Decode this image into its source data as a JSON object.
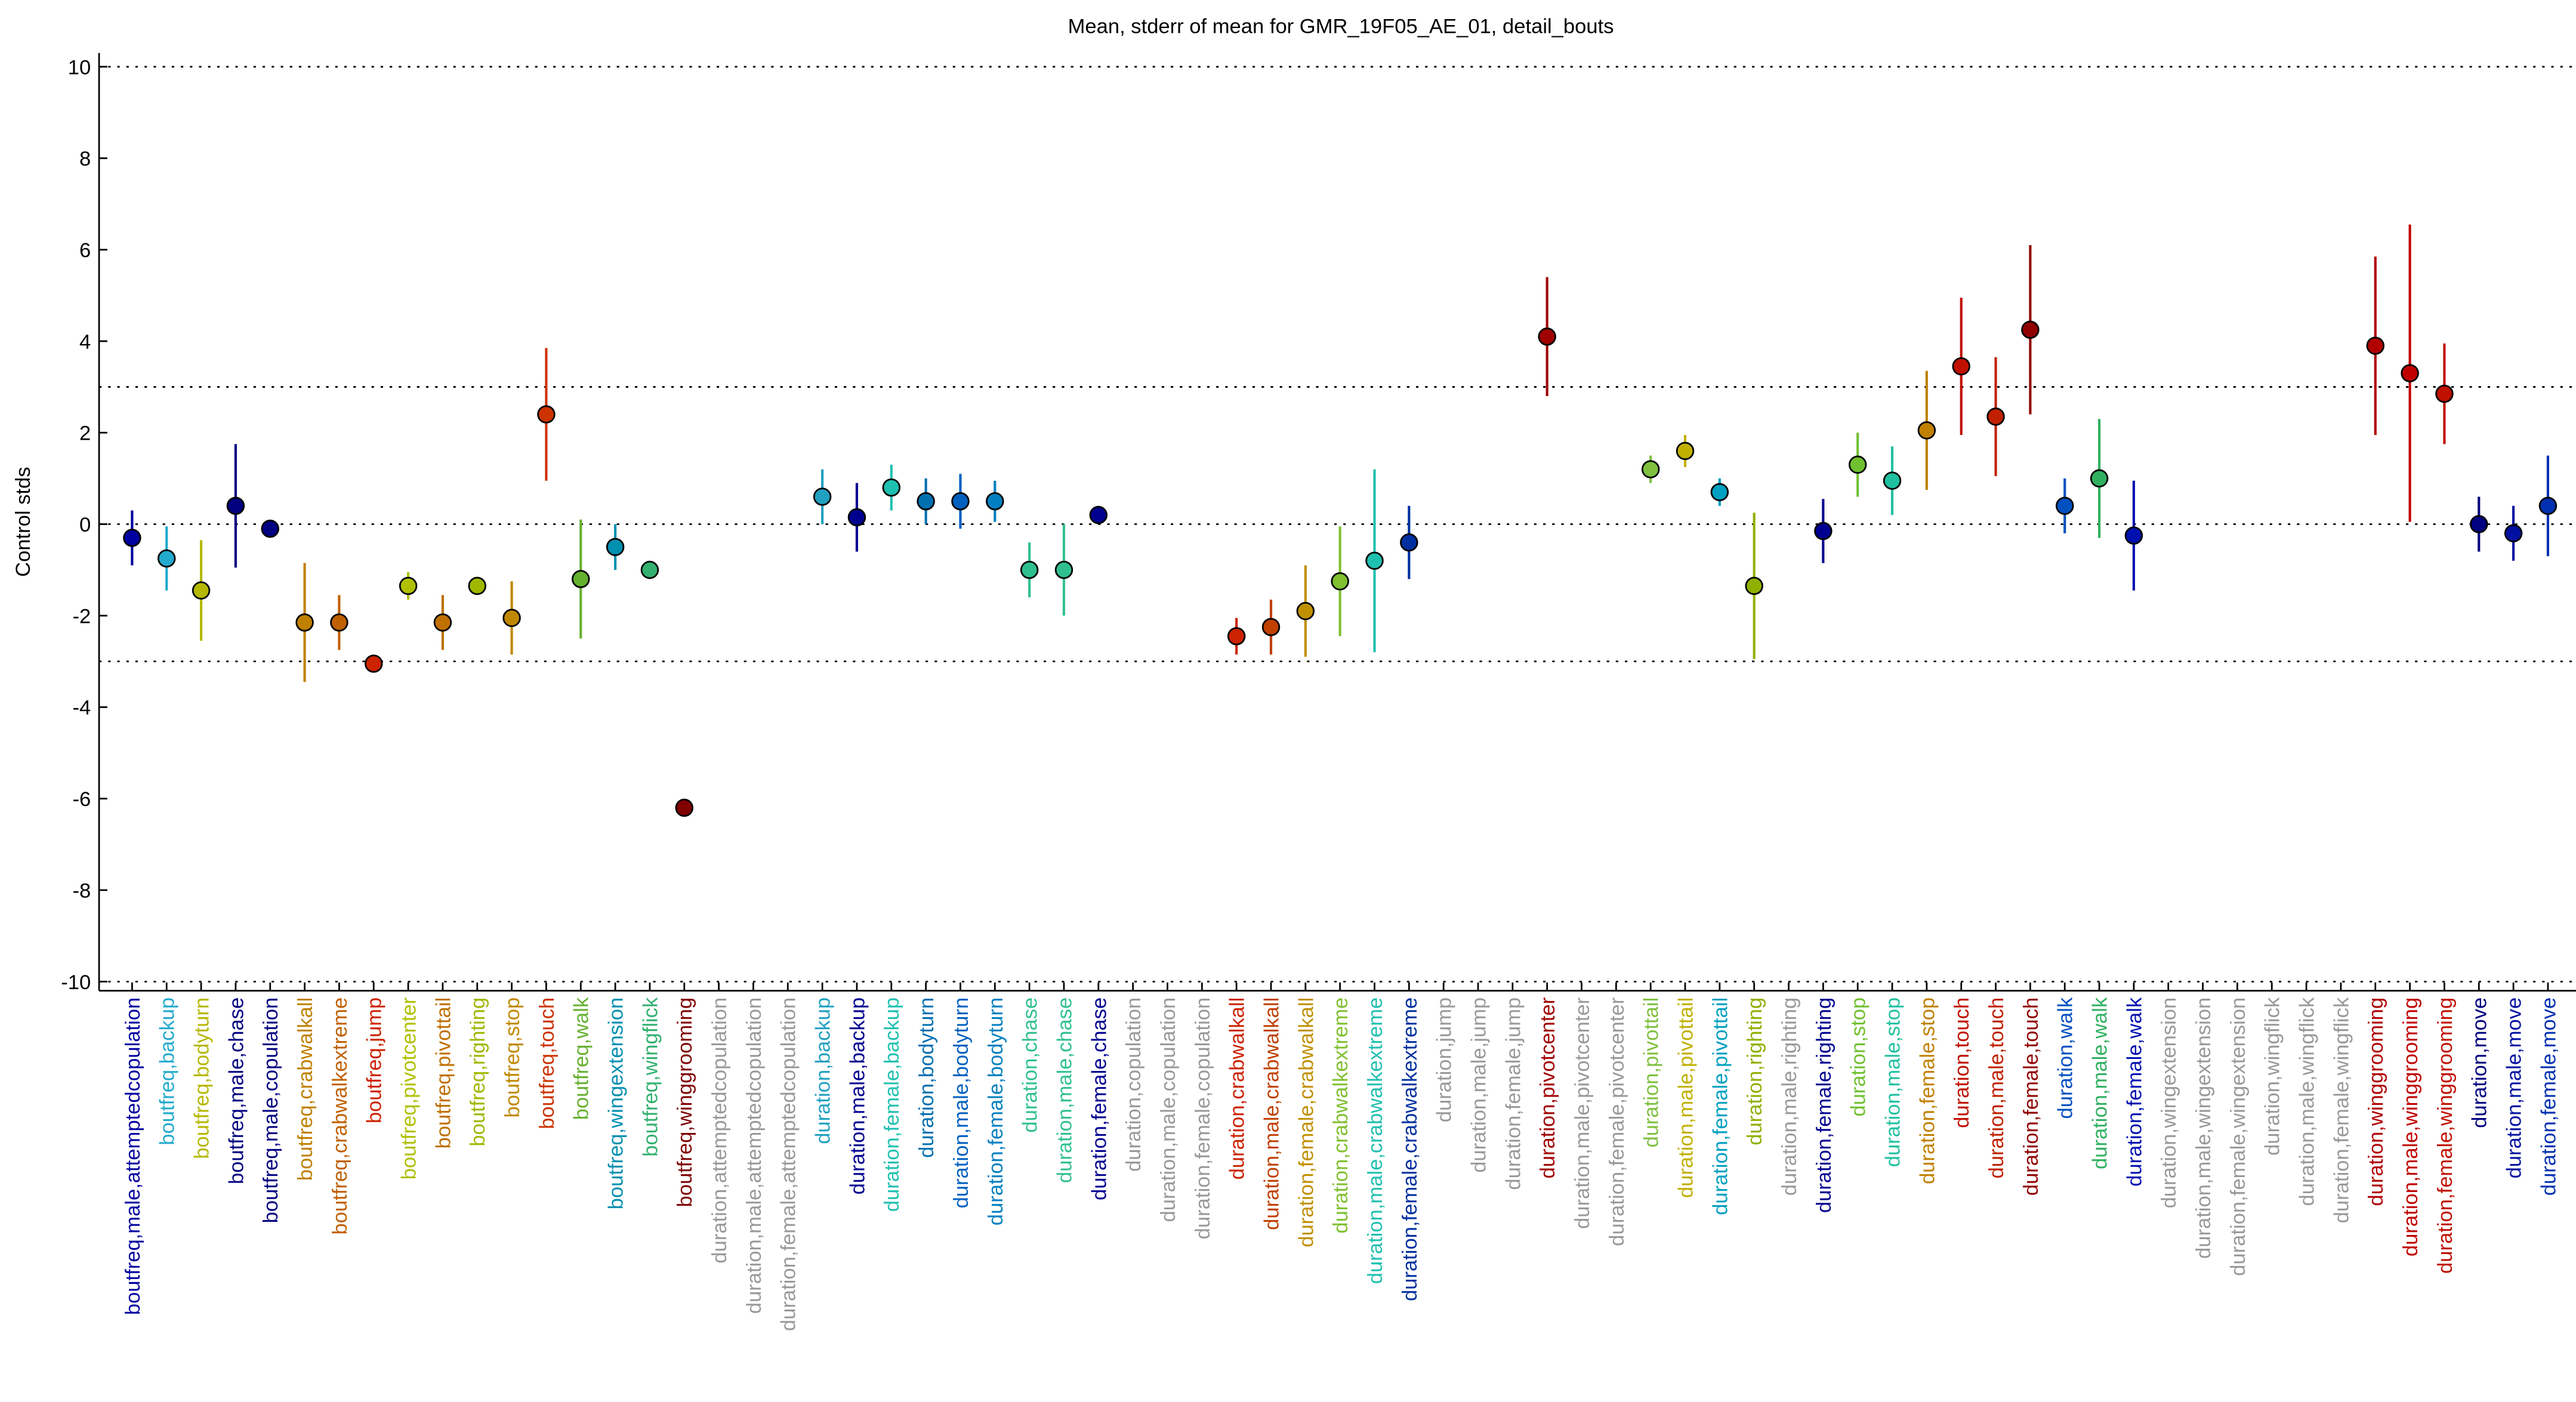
{
  "chart_data": {
    "type": "errorbar",
    "title": "Mean, stderr of mean for GMR_19F05_AE_01, detail_bouts",
    "ylabel": "Control stds",
    "ylim": [
      -10.2,
      10.3
    ],
    "yticks": [
      -10,
      -8,
      -6,
      -4,
      -2,
      0,
      2,
      4,
      6,
      8,
      10
    ],
    "hlines": [
      10,
      3,
      0,
      -3,
      -10
    ],
    "categories": [
      "boutfreq,male,attemptedcopulation",
      "boutfreq,backup",
      "boutfreq,bodyturn",
      "boutfreq,male,chase",
      "boutfreq,male,copulation",
      "boutfreq,crabwalkall",
      "boutfreq,crabwalkextreme",
      "boutfreq,jump",
      "boutfreq,pivotcenter",
      "boutfreq,pivottail",
      "boutfreq,righting",
      "boutfreq,stop",
      "boutfreq,touch",
      "boutfreq,walk",
      "boutfreq,wingextension",
      "boutfreq,wingflick",
      "boutfreq,winggrooming",
      "duration,attemptedcopulation",
      "duration,male,attemptedcopulation",
      "duration,female,attemptedcopulation",
      "duration,backup",
      "duration,male,backup",
      "duration,female,backup",
      "duration,bodyturn",
      "duration,male,bodyturn",
      "duration,female,bodyturn",
      "duration,chase",
      "duration,male,chase",
      "duration,female,chase",
      "duration,copulation",
      "duration,male,copulation",
      "duration,female,copulation",
      "duration,crabwalkall",
      "duration,male,crabwalkall",
      "duration,female,crabwalkall",
      "duration,crabwalkextreme",
      "duration,male,crabwalkextreme",
      "duration,female,crabwalkextreme",
      "duration,jump",
      "duration,male,jump",
      "duration,female,jump",
      "duration,pivotcenter",
      "duration,male,pivotcenter",
      "duration,female,pivotcenter",
      "duration,pivottail",
      "duration,male,pivottail",
      "duration,female,pivottail",
      "duration,righting",
      "duration,male,righting",
      "duration,female,righting",
      "duration,stop",
      "duration,male,stop",
      "duration,female,stop",
      "duration,touch",
      "duration,male,touch",
      "duration,female,touch",
      "duration,walk",
      "duration,male,walk",
      "duration,female,walk",
      "duration,wingextension",
      "duration,male,wingextension",
      "duration,female,wingextension",
      "duration,wingflick",
      "duration,male,wingflick",
      "duration,female,wingflick",
      "duration,winggrooming",
      "duration,male,winggrooming",
      "duration,female,winggrooming",
      "duration,move",
      "duration,male,move",
      "duration,female,move"
    ],
    "series": [
      {
        "values": [
          -0.3,
          -0.75,
          -1.45,
          0.4,
          -0.1,
          -2.15,
          -2.15,
          -3.05,
          -1.35,
          -2.15,
          -1.35,
          -2.05,
          2.4,
          -1.2,
          -0.5,
          -1.0,
          -6.2,
          null,
          null,
          null,
          0.6,
          0.15,
          0.8,
          0.5,
          0.5,
          0.5,
          -1.0,
          -1.0,
          0.2,
          null,
          null,
          null,
          -2.45,
          -2.25,
          -1.9,
          -1.25,
          -0.8,
          -0.4,
          null,
          null,
          null,
          4.1,
          null,
          null,
          1.2,
          1.6,
          0.7,
          -1.35,
          null,
          -0.15,
          1.3,
          0.95,
          2.05,
          3.45,
          2.35,
          4.25,
          0.4,
          1.0,
          -0.25,
          null,
          null,
          null,
          null,
          null,
          null,
          3.9,
          3.3,
          2.85,
          0.0,
          -0.2,
          0.4
        ],
        "errors": [
          0.6,
          0.7,
          1.1,
          1.35,
          0.1,
          1.3,
          0.6,
          0.1,
          0.3,
          0.6,
          0.2,
          0.8,
          1.45,
          1.3,
          0.5,
          0.2,
          0.15,
          null,
          null,
          null,
          0.6,
          0.75,
          0.5,
          0.5,
          0.6,
          0.45,
          0.6,
          1.0,
          0.2,
          null,
          null,
          null,
          0.4,
          0.6,
          1.0,
          1.2,
          2.0,
          0.8,
          null,
          null,
          null,
          1.3,
          null,
          null,
          0.3,
          0.35,
          0.3,
          1.6,
          null,
          0.7,
          0.7,
          0.75,
          1.3,
          1.5,
          1.3,
          1.85,
          0.6,
          1.3,
          1.2,
          null,
          null,
          null,
          null,
          null,
          null,
          1.95,
          3.25,
          1.1,
          0.6,
          0.6,
          1.1
        ],
        "colors": [
          "#0000a0",
          "#22aacc",
          "#b5b800",
          "#000080",
          "#000080",
          "#c08000",
          "#c06000",
          "#cc2200",
          "#b0c000",
          "#c07000",
          "#a0b800",
          "#c08800",
          "#cc3300",
          "#66b030",
          "#0090b0",
          "#33b070",
          "#800000",
          "#999999",
          "#999999",
          "#999999",
          "#20a0c0",
          "#000090",
          "#20c0b0",
          "#0070b0",
          "#0060c0",
          "#0080c0",
          "#30c090",
          "#30c090",
          "#000090",
          "#999999",
          "#999999",
          "#999999",
          "#cc2200",
          "#c04000",
          "#c09000",
          "#80c030",
          "#20c0b0",
          "#0030a0",
          "#999999",
          "#999999",
          "#999999",
          "#a00000",
          "#999999",
          "#999999",
          "#80c040",
          "#c0b000",
          "#00a0c0",
          "#90b000",
          "#999999",
          "#000090",
          "#70c030",
          "#20c0a0",
          "#c08000",
          "#c01000",
          "#c02000",
          "#900000",
          "#0050c0",
          "#30b060",
          "#0010b0",
          "#999999",
          "#999999",
          "#999999",
          "#999999",
          "#999999",
          "#999999",
          "#b00000",
          "#c00000",
          "#c01000",
          "#000080",
          "#0010a0",
          "#0030b0"
        ]
      }
    ]
  }
}
